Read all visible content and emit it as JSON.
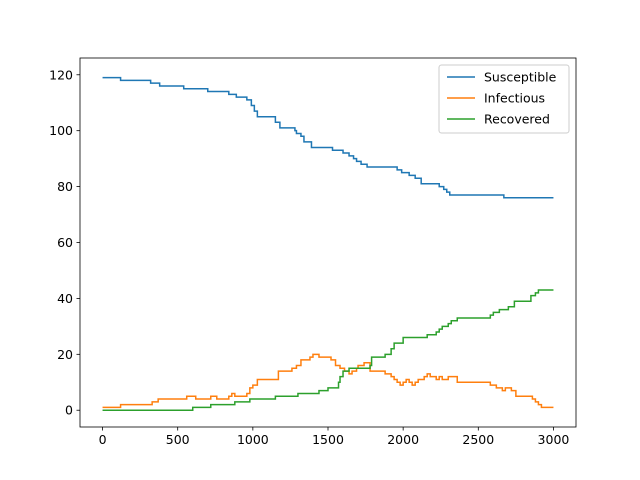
{
  "chart_data": {
    "type": "line",
    "title": "",
    "xlabel": "",
    "ylabel": "",
    "xlim": [
      -150,
      3150
    ],
    "ylim": [
      -6,
      126
    ],
    "xticks": [
      0,
      500,
      1000,
      1500,
      2000,
      2500,
      3000
    ],
    "yticks": [
      0,
      20,
      40,
      60,
      80,
      100,
      120
    ],
    "grid": false,
    "legend": "top-right",
    "step": true,
    "series": [
      {
        "name": "Susceptible",
        "color": "#1f77b4",
        "points": [
          [
            0,
            119
          ],
          [
            120,
            118
          ],
          [
            320,
            117
          ],
          [
            380,
            116
          ],
          [
            540,
            115
          ],
          [
            700,
            114
          ],
          [
            840,
            113
          ],
          [
            890,
            112
          ],
          [
            960,
            111
          ],
          [
            990,
            109
          ],
          [
            1010,
            107
          ],
          [
            1030,
            105
          ],
          [
            1150,
            103
          ],
          [
            1180,
            101
          ],
          [
            1280,
            100
          ],
          [
            1290,
            99
          ],
          [
            1320,
            98
          ],
          [
            1340,
            96
          ],
          [
            1390,
            94
          ],
          [
            1530,
            93
          ],
          [
            1600,
            92
          ],
          [
            1640,
            91
          ],
          [
            1670,
            90
          ],
          [
            1690,
            89
          ],
          [
            1720,
            88
          ],
          [
            1760,
            87
          ],
          [
            1960,
            86
          ],
          [
            1990,
            85
          ],
          [
            2040,
            84
          ],
          [
            2080,
            83
          ],
          [
            2120,
            81
          ],
          [
            2240,
            80
          ],
          [
            2270,
            79
          ],
          [
            2290,
            78
          ],
          [
            2310,
            77
          ],
          [
            2670,
            76
          ],
          [
            3000,
            76
          ]
        ]
      },
      {
        "name": "Infectious",
        "color": "#ff7f0e",
        "points": [
          [
            0,
            1
          ],
          [
            120,
            2
          ],
          [
            330,
            3
          ],
          [
            370,
            4
          ],
          [
            560,
            5
          ],
          [
            620,
            4
          ],
          [
            720,
            5
          ],
          [
            760,
            4
          ],
          [
            840,
            5
          ],
          [
            860,
            6
          ],
          [
            880,
            5
          ],
          [
            960,
            6
          ],
          [
            980,
            8
          ],
          [
            1000,
            9
          ],
          [
            1030,
            11
          ],
          [
            1170,
            14
          ],
          [
            1260,
            15
          ],
          [
            1290,
            16
          ],
          [
            1320,
            18
          ],
          [
            1380,
            19
          ],
          [
            1400,
            20
          ],
          [
            1440,
            19
          ],
          [
            1520,
            18
          ],
          [
            1550,
            16
          ],
          [
            1580,
            15
          ],
          [
            1610,
            14
          ],
          [
            1640,
            13
          ],
          [
            1660,
            14
          ],
          [
            1690,
            15
          ],
          [
            1700,
            16
          ],
          [
            1740,
            17
          ],
          [
            1780,
            14
          ],
          [
            1880,
            13
          ],
          [
            1920,
            12
          ],
          [
            1940,
            11
          ],
          [
            1960,
            10
          ],
          [
            1980,
            9
          ],
          [
            2000,
            10
          ],
          [
            2020,
            11
          ],
          [
            2040,
            10
          ],
          [
            2060,
            9
          ],
          [
            2080,
            10
          ],
          [
            2100,
            11
          ],
          [
            2140,
            12
          ],
          [
            2160,
            13
          ],
          [
            2180,
            12
          ],
          [
            2220,
            11
          ],
          [
            2240,
            12
          ],
          [
            2260,
            11
          ],
          [
            2300,
            12
          ],
          [
            2360,
            10
          ],
          [
            2580,
            9
          ],
          [
            2620,
            8
          ],
          [
            2660,
            7
          ],
          [
            2680,
            8
          ],
          [
            2720,
            7
          ],
          [
            2750,
            5
          ],
          [
            2860,
            4
          ],
          [
            2880,
            3
          ],
          [
            2900,
            2
          ],
          [
            2920,
            1
          ],
          [
            3000,
            1
          ]
        ]
      },
      {
        "name": "Recovered",
        "color": "#2ca02c",
        "points": [
          [
            0,
            0
          ],
          [
            600,
            1
          ],
          [
            720,
            2
          ],
          [
            880,
            3
          ],
          [
            980,
            4
          ],
          [
            1150,
            5
          ],
          [
            1300,
            6
          ],
          [
            1440,
            7
          ],
          [
            1500,
            8
          ],
          [
            1570,
            10
          ],
          [
            1580,
            12
          ],
          [
            1600,
            14
          ],
          [
            1640,
            15
          ],
          [
            1780,
            16
          ],
          [
            1790,
            19
          ],
          [
            1880,
            20
          ],
          [
            1920,
            22
          ],
          [
            1940,
            24
          ],
          [
            2000,
            26
          ],
          [
            2160,
            27
          ],
          [
            2220,
            28
          ],
          [
            2240,
            29
          ],
          [
            2260,
            30
          ],
          [
            2300,
            31
          ],
          [
            2320,
            32
          ],
          [
            2360,
            33
          ],
          [
            2580,
            34
          ],
          [
            2600,
            35
          ],
          [
            2640,
            36
          ],
          [
            2700,
            37
          ],
          [
            2740,
            39
          ],
          [
            2850,
            41
          ],
          [
            2880,
            42
          ],
          [
            2900,
            43
          ],
          [
            3000,
            43
          ]
        ]
      }
    ]
  }
}
